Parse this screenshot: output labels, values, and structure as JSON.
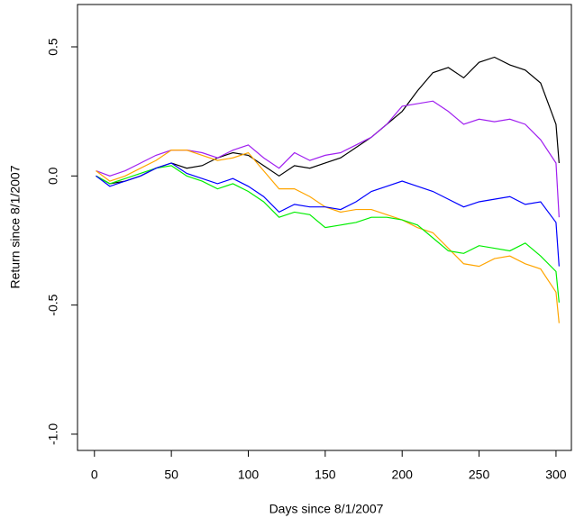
{
  "chart_data": {
    "type": "line",
    "xlabel": "Days since 8/1/2007",
    "ylabel": "Return since 8/1/2007",
    "x": [
      1,
      10,
      20,
      30,
      40,
      50,
      60,
      70,
      80,
      90,
      100,
      110,
      120,
      130,
      140,
      150,
      160,
      170,
      180,
      190,
      200,
      210,
      220,
      230,
      240,
      250,
      260,
      270,
      280,
      290,
      300,
      302
    ],
    "series": [
      {
        "color": "#000000",
        "values": [
          0.0,
          -0.03,
          -0.02,
          0.0,
          0.03,
          0.05,
          0.03,
          0.04,
          0.07,
          0.09,
          0.08,
          0.04,
          0.0,
          0.04,
          0.03,
          0.05,
          0.07,
          0.11,
          0.15,
          0.2,
          0.25,
          0.33,
          0.4,
          0.42,
          0.38,
          0.44,
          0.46,
          0.43,
          0.41,
          0.36,
          0.2,
          0.05
        ]
      },
      {
        "color": "#a020f0",
        "values": [
          0.02,
          0.0,
          0.02,
          0.05,
          0.08,
          0.1,
          0.1,
          0.09,
          0.07,
          0.1,
          0.12,
          0.07,
          0.03,
          0.09,
          0.06,
          0.08,
          0.09,
          0.12,
          0.15,
          0.2,
          0.27,
          0.28,
          0.29,
          0.25,
          0.2,
          0.22,
          0.21,
          0.22,
          0.2,
          0.14,
          0.05,
          -0.16
        ]
      },
      {
        "color": "#ffa500",
        "values": [
          0.02,
          -0.02,
          0.0,
          0.03,
          0.06,
          0.1,
          0.1,
          0.08,
          0.06,
          0.07,
          0.09,
          0.02,
          -0.05,
          -0.05,
          -0.08,
          -0.12,
          -0.14,
          -0.13,
          -0.13,
          -0.15,
          -0.17,
          -0.2,
          -0.22,
          -0.28,
          -0.34,
          -0.35,
          -0.32,
          -0.31,
          -0.34,
          -0.36,
          -0.45,
          -0.57
        ]
      },
      {
        "color": "#00ee00",
        "values": [
          0.0,
          -0.03,
          -0.01,
          0.01,
          0.03,
          0.04,
          0.0,
          -0.02,
          -0.05,
          -0.03,
          -0.06,
          -0.1,
          -0.16,
          -0.14,
          -0.15,
          -0.2,
          -0.19,
          -0.18,
          -0.16,
          -0.16,
          -0.17,
          -0.19,
          -0.24,
          -0.29,
          -0.3,
          -0.27,
          -0.28,
          -0.29,
          -0.26,
          -0.31,
          -0.37,
          -0.49
        ]
      },
      {
        "color": "#0000ff",
        "values": [
          0.0,
          -0.04,
          -0.02,
          0.0,
          0.03,
          0.05,
          0.01,
          -0.01,
          -0.03,
          -0.01,
          -0.04,
          -0.08,
          -0.14,
          -0.11,
          -0.12,
          -0.12,
          -0.13,
          -0.1,
          -0.06,
          -0.04,
          -0.02,
          -0.04,
          -0.06,
          -0.09,
          -0.12,
          -0.1,
          -0.09,
          -0.08,
          -0.11,
          -0.1,
          -0.18,
          -0.35
        ]
      }
    ],
    "xlim": [
      -11,
      310
    ],
    "ylim": [
      -1.063,
      0.664
    ],
    "xticks": [
      0,
      50,
      100,
      150,
      200,
      250,
      300
    ],
    "yticks": [
      {
        "value": -1,
        "label": "-1.0"
      },
      -0.5,
      {
        "value": 0,
        "label": "0.0"
      },
      0.5
    ]
  }
}
